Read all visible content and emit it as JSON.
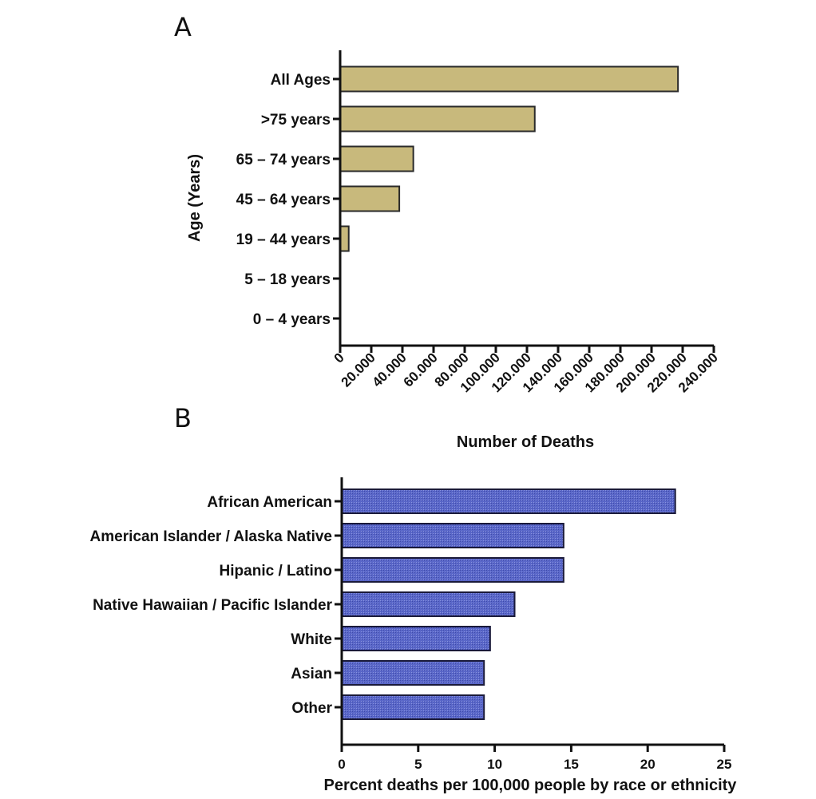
{
  "chart_data": [
    {
      "panel": "A",
      "type": "bar",
      "orientation": "horizontal",
      "categories": [
        "All Ages",
        ">75 years",
        "65 – 74 years",
        "45 – 64 years",
        "19 – 44 years",
        "5 – 18 years",
        "0 – 4 years"
      ],
      "values": [
        217000,
        125000,
        47000,
        38000,
        5500,
        0,
        0
      ],
      "xlabel": "Number of Deaths",
      "ylabel": "Age (Years)",
      "xlim": [
        0,
        240000
      ],
      "xticks": [
        0,
        20000,
        40000,
        60000,
        80000,
        100000,
        120000,
        140000,
        160000,
        180000,
        200000,
        220000,
        240000
      ],
      "xtick_labels": [
        "0",
        "20.000",
        "40.000",
        "60.000",
        "80.000",
        "100.000",
        "120.000",
        "140.000",
        "160.000",
        "180.000",
        "200.000",
        "220.000",
        "240.000"
      ],
      "bar_color": "#c8b97c",
      "grid": false,
      "legend": "none"
    },
    {
      "panel": "B",
      "type": "bar",
      "orientation": "horizontal",
      "categories": [
        "African American",
        "American Islander / Alaska Native",
        "Hipanic / Latino",
        "Native Hawaiian / Pacific Islander",
        "White",
        "Asian",
        "Other"
      ],
      "values": [
        21.8,
        14.5,
        14.5,
        11.3,
        9.7,
        9.3,
        9.3
      ],
      "xlabel": "Percent deaths per 100,000 people by race or ethnicity",
      "ylabel": "",
      "xlim": [
        0,
        25
      ],
      "xticks": [
        0,
        5,
        10,
        15,
        20,
        25
      ],
      "xtick_labels": [
        "0",
        "5",
        "10",
        "15",
        "20",
        "25"
      ],
      "bar_color": "#5a67c9",
      "grid": false,
      "legend": "none"
    }
  ]
}
